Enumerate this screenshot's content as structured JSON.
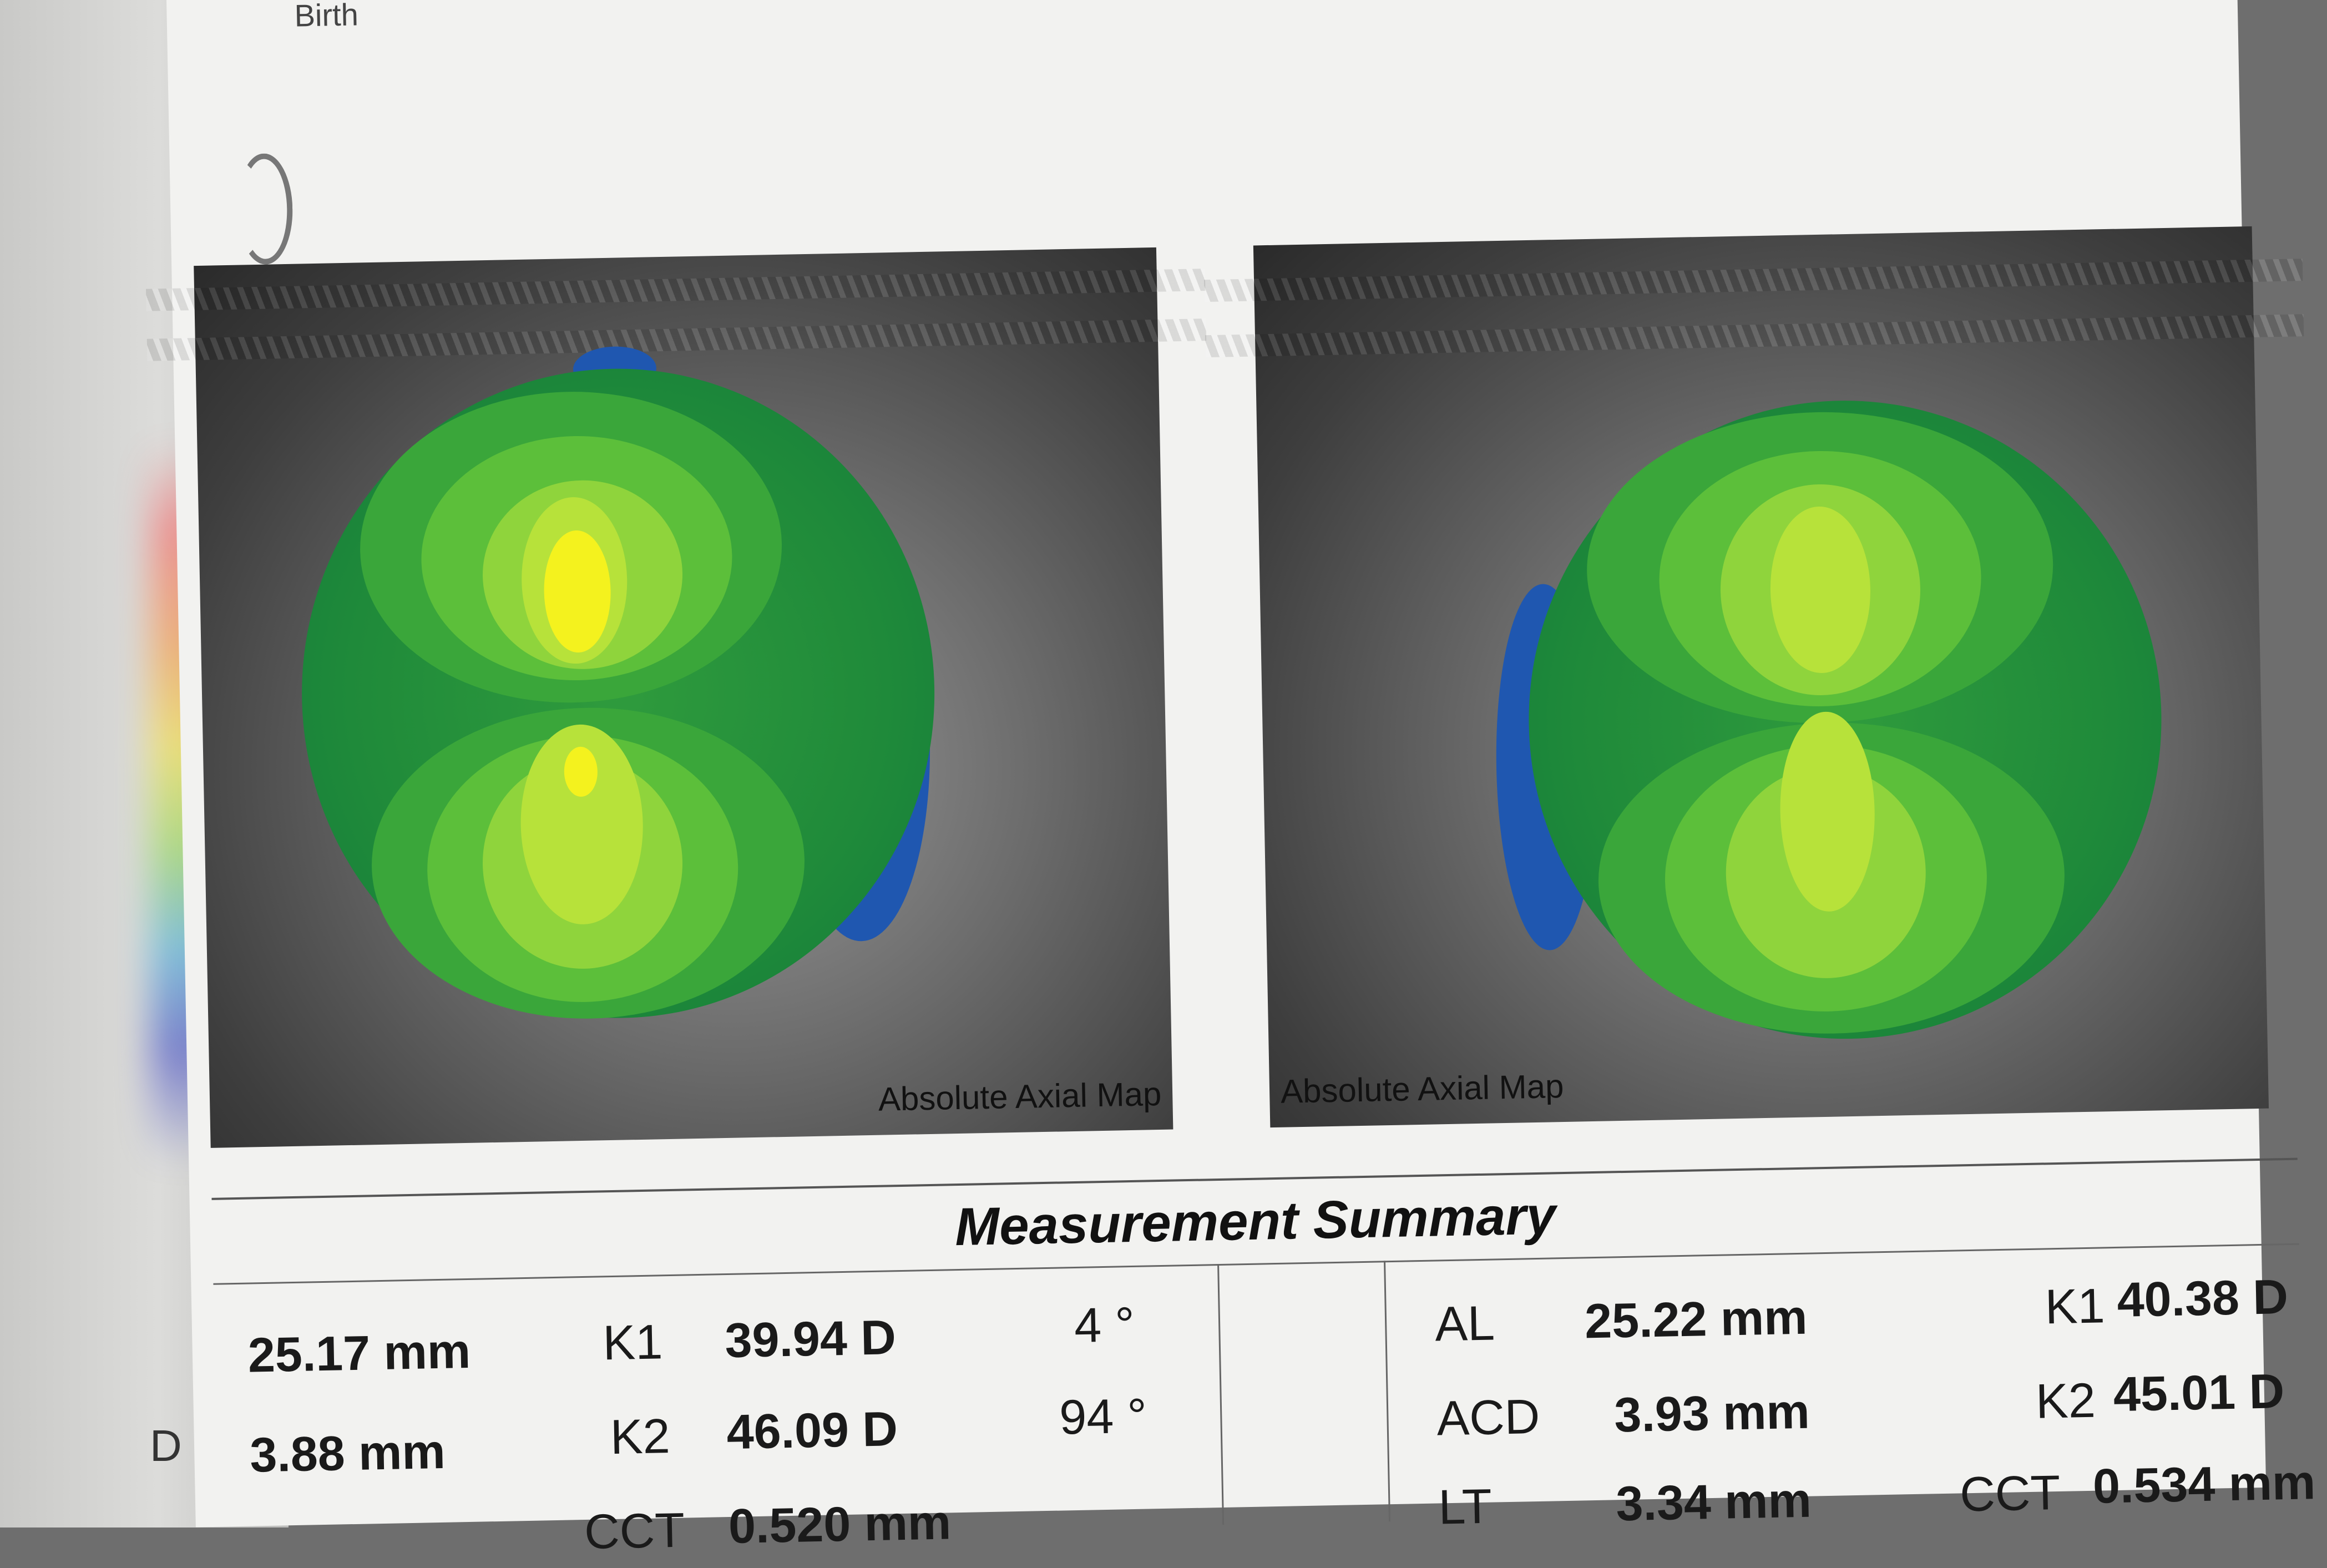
{
  "page": {
    "birth_label": "Birth",
    "left_fragment": "D"
  },
  "maps": [
    {
      "caption": "Absolute Axial Map"
    },
    {
      "caption": "Absolute Axial Map"
    }
  ],
  "summary": {
    "title": "Measurement Summary",
    "left_eye": {
      "al_value": "25.17 mm",
      "acd_value": "3.88 mm",
      "k1_label": "K1",
      "k1_value": "39.94 D",
      "k1_axis": "4 °",
      "k2_label": "K2",
      "k2_value": "46.09 D",
      "k2_axis": "94 °",
      "cct_label": "CCT",
      "cct_value": "0.520 mm"
    },
    "right_eye": {
      "al_label": "AL",
      "al_value": "25.22 mm",
      "acd_label": "ACD",
      "acd_value": "3.93 mm",
      "lt_label": "LT",
      "lt_value": "3.34 mm",
      "k1_label": "K1",
      "k1_value": "40.38 D",
      "k2_label": "K2",
      "k2_value": "45.01 D",
      "cct_label": "CCT",
      "cct_value": "0.534 mm"
    }
  },
  "colors": {
    "map_yellow": "#f4f21e",
    "map_yellow_green": "#b7e23a",
    "map_light_green": "#8fd43c",
    "map_mid_green": "#5cbf3a",
    "map_green": "#3aa63a",
    "map_dark_green": "#1e8a3a",
    "map_blue": "#1f57b0"
  }
}
